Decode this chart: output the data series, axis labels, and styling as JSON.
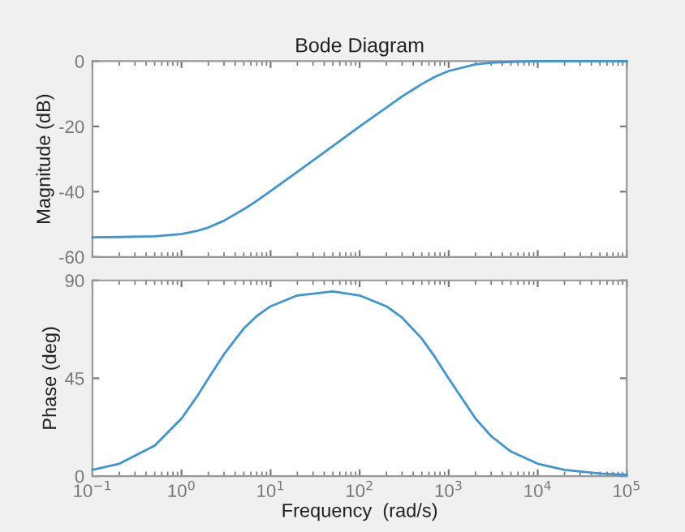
{
  "chart_data": [
    {
      "type": "line",
      "title": "Bode Diagram",
      "ylabel": "Magnitude (dB)",
      "log": "x",
      "xlim": [
        0.1,
        100000
      ],
      "xticks": [
        {
          "value": 0.1,
          "label": null
        },
        {
          "value": 1,
          "label": null
        },
        {
          "value": 10,
          "label": null
        },
        {
          "value": 100,
          "label": null
        },
        {
          "value": 1000,
          "label": null
        },
        {
          "value": 10000,
          "label": null
        },
        {
          "value": 100000,
          "label": null
        }
      ],
      "ylim": [
        -60,
        0
      ],
      "yticks": [
        -60,
        -40,
        -20,
        0
      ],
      "tick_labels": "y",
      "grid": false,
      "series": [
        {
          "color": "#3d95d4",
          "x": [
            0.1,
            0.2,
            0.5,
            1,
            1.5,
            2,
            3,
            5,
            7,
            10,
            20,
            50,
            100,
            200,
            300,
            500,
            700,
            1000,
            2000,
            3000,
            5000,
            10000,
            20000,
            50000,
            100000
          ],
          "values": [
            -54.0,
            -53.9,
            -53.7,
            -53.0,
            -52.0,
            -51.0,
            -48.9,
            -45.4,
            -42.8,
            -39.8,
            -33.9,
            -26.0,
            -20.0,
            -14.2,
            -10.8,
            -7.0,
            -4.8,
            -3.0,
            -1.0,
            -0.5,
            -0.2,
            0,
            0,
            0,
            0
          ]
        }
      ]
    },
    {
      "type": "line",
      "xlabel": "Frequency  (rad/s)",
      "ylabel": "Phase (deg)",
      "log": "x",
      "xlim": [
        0.1,
        100000
      ],
      "xticks": [
        {
          "value": 0.1,
          "label": "10$^{−1}$"
        },
        {
          "value": 1,
          "label": "10$^{0}$"
        },
        {
          "value": 10,
          "label": "10$^{1}$"
        },
        {
          "value": 100,
          "label": "10$^{2}$"
        },
        {
          "value": 1000,
          "label": "10$^{3}$"
        },
        {
          "value": 10000,
          "label": "10$^{4}$"
        },
        {
          "value": 100000,
          "label": "10$^{5}$"
        }
      ],
      "ylim": [
        0,
        90
      ],
      "yticks": [
        0,
        45,
        90
      ],
      "grid": false,
      "series": [
        {
          "color": "#3d95d4",
          "x": [
            0.1,
            0.2,
            0.5,
            1,
            1.5,
            2,
            3,
            5,
            7,
            10,
            20,
            50,
            100,
            200,
            300,
            500,
            700,
            1000,
            2000,
            3000,
            5000,
            10000,
            20000,
            50000,
            100000
          ],
          "values": [
            2.9,
            5.7,
            14.0,
            26.5,
            36.8,
            44.9,
            56.1,
            67.9,
            73.6,
            78.1,
            83.1,
            84.9,
            83.1,
            78.1,
            72.9,
            63.2,
            54.8,
            44.9,
            26.5,
            18.4,
            11.3,
            5.7,
            2.9,
            1.2,
            0.6
          ]
        }
      ]
    }
  ]
}
